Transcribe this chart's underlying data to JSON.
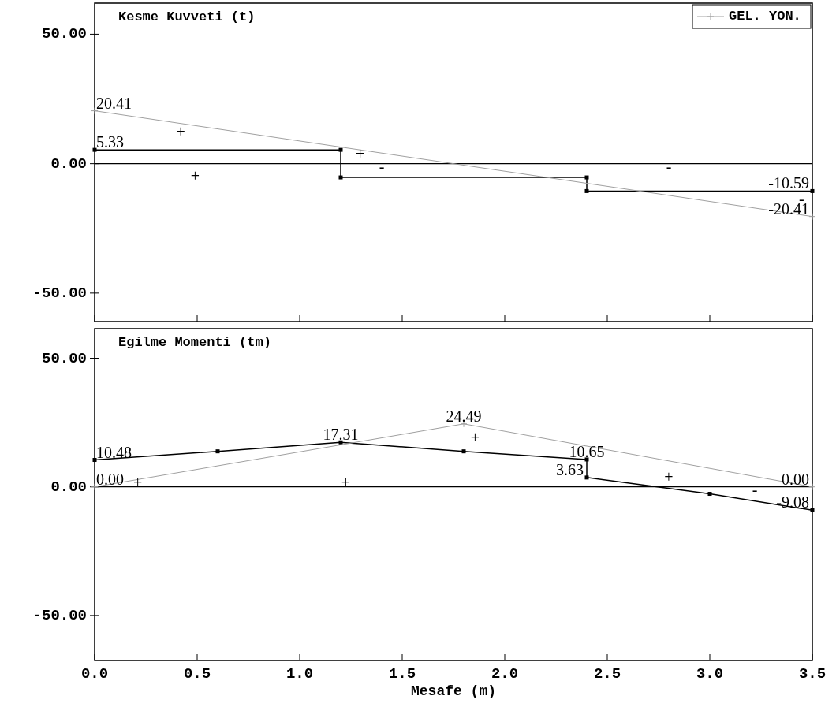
{
  "chart_data": [
    {
      "type": "line",
      "title": "Kesme Kuvveti (t)",
      "xlim": [
        0,
        3.5
      ],
      "ylim": [
        -61,
        62
      ],
      "xticks": [
        0,
        0.5,
        1,
        1.5,
        2,
        2.5,
        3,
        3.5
      ],
      "yticks": [
        {
          "value": -50,
          "label": "-50.00"
        },
        {
          "value": 0,
          "label": "0.00"
        },
        {
          "value": 50,
          "label": "50.00"
        }
      ],
      "tick_labels": "y",
      "grid": false,
      "legend": "top right",
      "ref_lines": [
        {
          "axis": "y",
          "value": 0,
          "color": "#000000"
        }
      ],
      "series": [
        {
          "color": "#000000",
          "marker": "square",
          "x": [
            0,
            1.2,
            1.2,
            2.4,
            2.4,
            3.5
          ],
          "values": [
            5.33,
            5.33,
            -5.3,
            -5.3,
            -10.59,
            -10.59
          ]
        },
        {
          "name": "GEL. YON.",
          "color": "#a0a0a0",
          "marker": "cross",
          "x": [
            0,
            3.5
          ],
          "values": [
            20.41,
            -20.41
          ]
        }
      ],
      "annotations": [
        {
          "text": "20.41",
          "x": 0,
          "y": 20.41
        },
        {
          "text": "5.33",
          "x": 0,
          "y": 5.33
        },
        {
          "text": "-10.59",
          "x": 3.5,
          "y": -10.59
        },
        {
          "text": "-20.41",
          "x": 3.5,
          "y": -20.41
        },
        "+",
        "+",
        "+",
        "-",
        "-",
        "-"
      ]
    },
    {
      "type": "line",
      "title": "Egilme Momenti (tm)",
      "xlabel": "Mesafe (m)",
      "xlim": [
        0,
        3.5
      ],
      "ylim": [
        -67.5,
        61.5
      ],
      "xticks": [
        {
          "value": 0,
          "label": "0.0"
        },
        {
          "value": 0.5,
          "label": "0.5"
        },
        {
          "value": 1,
          "label": "1.0"
        },
        {
          "value": 1.5,
          "label": "1.5"
        },
        {
          "value": 2,
          "label": "2.0"
        },
        {
          "value": 2.5,
          "label": "2.5"
        },
        {
          "value": 3,
          "label": "3.0"
        },
        {
          "value": 3.5,
          "label": "3.5"
        }
      ],
      "yticks": [
        {
          "value": -50,
          "label": "-50.00"
        },
        {
          "value": 0,
          "label": "0.00"
        },
        {
          "value": 50,
          "label": "50.00"
        }
      ],
      "grid": false,
      "ref_lines": [
        {
          "axis": "y",
          "value": 0,
          "color": "#000000"
        }
      ],
      "series": [
        {
          "color": "#000000",
          "marker": "square",
          "x": [
            0,
            0.6,
            1.2,
            1.8,
            2.4,
            2.4,
            3.0,
            3.5
          ],
          "values": [
            10.48,
            13.8,
            17.31,
            13.8,
            10.65,
            3.63,
            -2.7,
            -9.08
          ]
        },
        {
          "color": "#a0a0a0",
          "marker": "cross",
          "x": [
            0,
            1.8,
            3.5
          ],
          "values": [
            0,
            24.49,
            0
          ]
        }
      ],
      "annotations": [
        {
          "text": "10.48",
          "x": 0,
          "y": 10.48
        },
        {
          "text": "17.31",
          "x": 1.2,
          "y": 17.31
        },
        {
          "text": "24.49",
          "x": 1.8,
          "y": 24.49
        },
        {
          "text": "10.65",
          "x": 2.4,
          "y": 10.65
        },
        {
          "text": "3.63",
          "x": 2.4,
          "y": 3.63
        },
        {
          "text": "0.00",
          "x": 0,
          "y": 0
        },
        {
          "text": "0.00",
          "x": 3.5,
          "y": 0
        },
        {
          "text": "-9.08",
          "x": 3.5,
          "y": -9.08
        },
        "+",
        "+",
        "+",
        "+",
        "-"
      ]
    }
  ]
}
